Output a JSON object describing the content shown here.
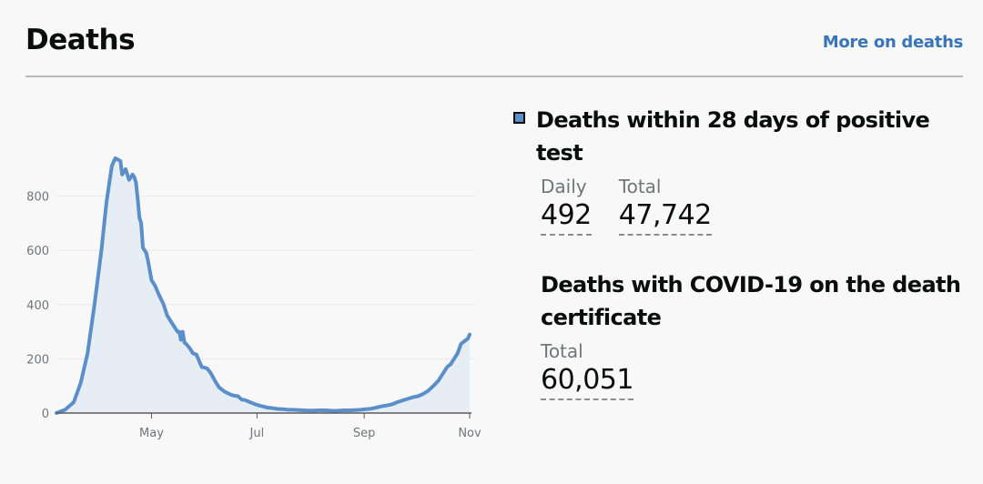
{
  "header": {
    "title": "Deaths",
    "more_link": "More on deaths"
  },
  "metrics": {
    "primary": {
      "title": "Deaths within 28 days of positive test",
      "daily_label": "Daily",
      "daily_value": "492",
      "total_label": "Total",
      "total_value": "47,742",
      "legend_color": "#5b8fc9"
    },
    "secondary": {
      "title": "Deaths with COVID-19 on the death certificate",
      "total_label": "Total",
      "total_value": "60,051"
    }
  },
  "colors": {
    "line": "#5b8fc9",
    "fill": "#e6edf4",
    "link": "#3a74b8",
    "grid": "#e8e8e8",
    "axis_text": "#6f777b"
  },
  "chart_data": {
    "type": "area",
    "title": "",
    "xlabel": "",
    "ylabel": "",
    "ylim": [
      0,
      1000
    ],
    "yticks": [
      0,
      200,
      400,
      600,
      800
    ],
    "x_ticks": [
      {
        "label": "May",
        "day": 121
      },
      {
        "label": "Jul",
        "day": 182
      },
      {
        "label": "Sep",
        "day": 244
      },
      {
        "label": "Nov",
        "day": 305
      }
    ],
    "x_range_days": [
      66,
      305
    ],
    "grid": true,
    "series": [
      {
        "x": [
          66,
          71,
          76,
          80,
          84,
          88,
          92,
          95,
          98,
          100,
          103,
          104,
          106,
          108,
          110,
          111,
          112,
          113,
          114,
          115,
          116,
          118,
          119,
          121,
          123,
          125,
          128,
          130,
          131,
          133,
          134,
          136,
          137,
          138,
          139,
          140,
          141,
          143,
          145,
          147,
          149,
          150,
          153,
          155,
          158,
          160,
          163,
          166,
          168,
          171,
          173,
          175,
          178,
          180,
          182,
          185,
          188,
          191,
          194,
          197,
          200,
          203,
          206,
          209,
          212,
          215,
          218,
          221,
          224,
          227,
          230,
          233,
          236,
          239,
          242,
          245,
          248,
          251,
          254,
          257,
          260,
          263,
          266,
          269,
          272,
          275,
          278,
          281,
          284,
          287,
          290,
          292,
          294,
          296,
          298,
          300,
          302,
          304,
          305
        ],
        "y": [
          0,
          12,
          40,
          110,
          220,
          400,
          600,
          780,
          910,
          940,
          930,
          880,
          900,
          860,
          880,
          870,
          850,
          790,
          720,
          700,
          610,
          590,
          560,
          490,
          470,
          440,
          400,
          360,
          350,
          330,
          320,
          300,
          300,
          270,
          300,
          260,
          255,
          240,
          220,
          215,
          185,
          170,
          165,
          150,
          115,
          95,
          80,
          70,
          65,
          62,
          50,
          48,
          40,
          35,
          30,
          25,
          20,
          18,
          15,
          14,
          12,
          12,
          11,
          10,
          9,
          9,
          10,
          10,
          9,
          8,
          9,
          10,
          10,
          11,
          12,
          14,
          16,
          20,
          25,
          28,
          32,
          40,
          46,
          52,
          58,
          62,
          70,
          82,
          100,
          120,
          150,
          170,
          180,
          200,
          220,
          255,
          265,
          275,
          290
        ]
      }
    ]
  }
}
